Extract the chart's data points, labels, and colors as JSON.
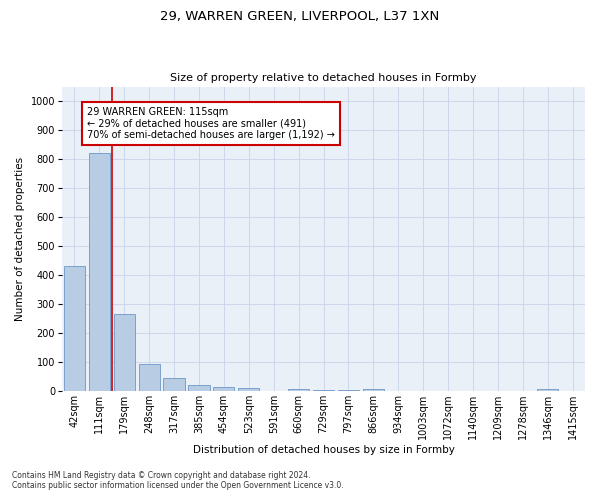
{
  "title1": "29, WARREN GREEN, LIVERPOOL, L37 1XN",
  "title2": "Size of property relative to detached houses in Formby",
  "xlabel": "Distribution of detached houses by size in Formby",
  "ylabel": "Number of detached properties",
  "categories": [
    "42sqm",
    "111sqm",
    "179sqm",
    "248sqm",
    "317sqm",
    "385sqm",
    "454sqm",
    "523sqm",
    "591sqm",
    "660sqm",
    "729sqm",
    "797sqm",
    "866sqm",
    "934sqm",
    "1003sqm",
    "1072sqm",
    "1140sqm",
    "1209sqm",
    "1278sqm",
    "1346sqm",
    "1415sqm"
  ],
  "values": [
    430,
    820,
    265,
    93,
    44,
    22,
    15,
    11,
    0,
    9,
    5,
    5,
    8,
    0,
    0,
    0,
    0,
    0,
    0,
    8,
    0
  ],
  "bar_color": "#b8cce4",
  "bar_edge_color": "#5a8abf",
  "vline_x": 1.5,
  "vline_color": "#cc0000",
  "annotation_text": "29 WARREN GREEN: 115sqm\n← 29% of detached houses are smaller (491)\n70% of semi-detached houses are larger (1,192) →",
  "annotation_box_color": "#cc0000",
  "ylim": [
    0,
    1050
  ],
  "yticks": [
    0,
    100,
    200,
    300,
    400,
    500,
    600,
    700,
    800,
    900,
    1000
  ],
  "footer1": "Contains HM Land Registry data © Crown copyright and database right 2024.",
  "footer2": "Contains public sector information licensed under the Open Government Licence v3.0.",
  "bg_color": "#ffffff",
  "plot_bg_color": "#eaf0f8",
  "grid_color": "#c8d4e8",
  "title1_fontsize": 9.5,
  "title2_fontsize": 8,
  "axis_label_fontsize": 7.5,
  "tick_fontsize": 7,
  "annotation_fontsize": 7,
  "footer_fontsize": 5.5
}
